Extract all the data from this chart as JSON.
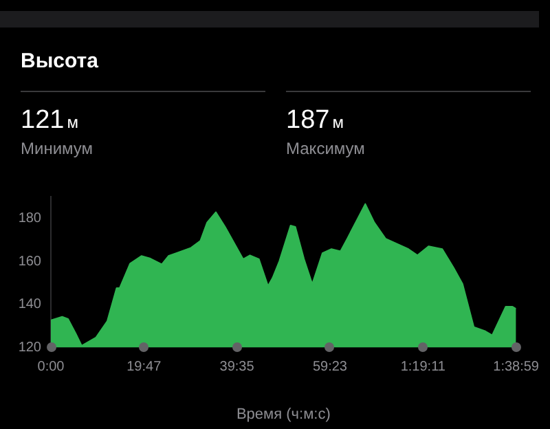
{
  "chart_data": {
    "type": "area",
    "title": "Высота",
    "xlabel": "Время (ч:м:с)",
    "annotations": [
      "121м",
      "Минимум",
      "187м",
      "Максимум"
    ],
    "x": [
      0,
      2.4,
      3.66,
      5.28,
      6.54,
      9.6,
      12,
      13.98,
      14.64,
      16.86,
      19.26,
      21.18,
      23.58,
      25.02,
      29.82,
      31.8,
      33.24,
      35.1,
      37.08,
      40.92,
      42.36,
      44.28,
      46.2,
      47.16,
      48.6,
      51,
      52.02,
      53.88,
      55.62,
      57.78,
      59.7,
      61.62,
      63.06,
      66.9,
      68.82,
      71.22,
      76.08,
      78,
      80.4,
      83.28,
      85.68,
      87.6,
      90,
      92.46,
      93.9,
      96.78,
      98.22,
      98.9833
    ],
    "series": [
      {
        "color": "#30b552",
        "values": [
          132.7,
          134.3,
          133.3,
          126.6,
          120.9,
          124.7,
          132.3,
          147.6,
          147.6,
          159,
          162.5,
          161.3,
          158.6,
          162.5,
          166.3,
          169.5,
          178,
          182.8,
          176,
          161,
          162.8,
          161,
          148.6,
          152.3,
          160,
          176.6,
          176,
          161,
          149.5,
          163.8,
          165.7,
          164.7,
          170.5,
          186.6,
          178,
          170.5,
          165.7,
          162.8,
          167,
          165.7,
          157.1,
          149.5,
          129.5,
          127.6,
          125.7,
          139,
          139,
          138
        ]
      }
    ],
    "xlim": [
      0,
      98.9833
    ],
    "xticks": [
      {
        "value": 0,
        "label": "0:00"
      },
      {
        "value": 19.7833,
        "label": "19:47"
      },
      {
        "value": 39.5833,
        "label": "39:35"
      },
      {
        "value": 59.3833,
        "label": "59:23"
      },
      {
        "value": 79.1833,
        "label": "1:19:11"
      },
      {
        "value": 98.9833,
        "label": "1:38:59"
      }
    ],
    "ylim": [
      120,
      190
    ],
    "yticks": [
      120,
      140,
      160,
      180
    ],
    "grid": false,
    "legend": false,
    "marker": "none"
  }
}
